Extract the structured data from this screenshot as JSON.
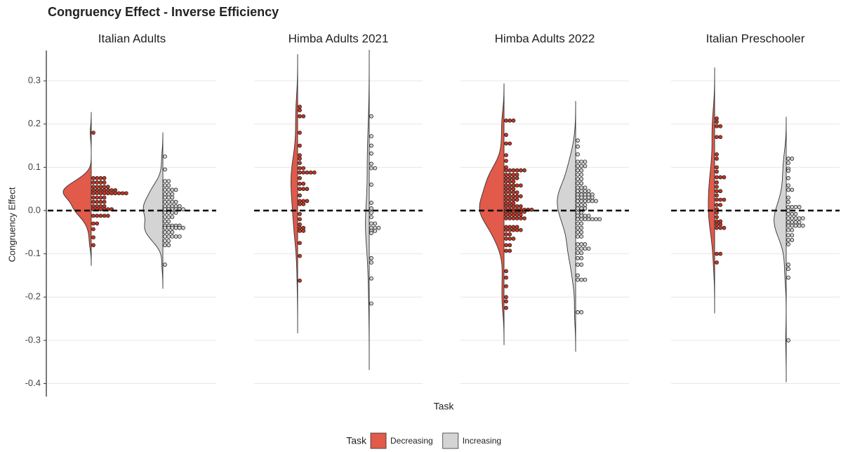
{
  "chart_data": {
    "type": "violin",
    "title": "Congruency Effect - Inverse Efficiency",
    "y_label": "Congruency Effect",
    "x_label": "Task",
    "legend_title": "Task",
    "ylim": [
      -0.43,
      0.37
    ],
    "yticks": [
      0.3,
      0.2,
      0.1,
      {
        "value": 0,
        "label": "0.0"
      },
      -0.1,
      -0.2,
      -0.3,
      -0.4
    ],
    "grid": true,
    "reference_line": 0,
    "series": [
      {
        "name": "Decreasing",
        "color": "#e15a4a",
        "dot_color": "#c93422"
      },
      {
        "name": "Increasing",
        "color": "#d4d4d4",
        "dot_color": "#d4d4d4"
      }
    ],
    "facets": [
      {
        "title": "Italian Adults",
        "series": [
          {
            "values": [
              0.18,
              0.075,
              0.075,
              0.075,
              0.075,
              0.065,
              0.065,
              0.065,
              0.065,
              0.055,
              0.055,
              0.055,
              0.055,
              0.055,
              0.047,
              0.047,
              0.047,
              0.047,
              0.047,
              0.047,
              0.047,
              0.04,
              0.04,
              0.04,
              0.04,
              0.04,
              0.04,
              0.04,
              0.04,
              0.04,
              0.04,
              0.03,
              0.03,
              0.03,
              0.03,
              0.02,
              0.02,
              0.02,
              0.02,
              0.01,
              0.01,
              0.01,
              0.01,
              0.003,
              0.003,
              0.003,
              0.003,
              0.003,
              0.003,
              -0.012,
              -0.012,
              -0.012,
              -0.012,
              -0.012,
              -0.03,
              -0.03,
              -0.043,
              -0.062,
              -0.08
            ]
          },
          {
            "values": [
              0.125,
              0.095,
              0.068,
              0.068,
              0.058,
              0.058,
              0.048,
              0.048,
              0.048,
              0.048,
              0.038,
              0.038,
              0.038,
              0.03,
              0.03,
              0.03,
              0.02,
              0.02,
              0.02,
              0.02,
              0.01,
              0.01,
              0.01,
              0.01,
              0.01,
              0.003,
              0.003,
              0.003,
              0.003,
              0.003,
              0.003,
              -0.005,
              -0.005,
              -0.005,
              -0.005,
              -0.015,
              -0.015,
              -0.015,
              -0.025,
              -0.025,
              -0.035,
              -0.035,
              -0.035,
              -0.035,
              -0.035,
              -0.04,
              -0.04,
              -0.04,
              -0.04,
              -0.04,
              -0.04,
              -0.05,
              -0.05,
              -0.05,
              -0.06,
              -0.06,
              -0.06,
              -0.06,
              -0.06,
              -0.07,
              -0.07,
              -0.08,
              -0.08,
              -0.125
            ]
          }
        ]
      },
      {
        "title": "Himba Adults 2021",
        "series": [
          {
            "values": [
              0.24,
              0.232,
              0.218,
              0.218,
              0.18,
              0.15,
              0.128,
              0.12,
              0.11,
              0.098,
              0.098,
              0.088,
              0.088,
              0.088,
              0.088,
              0.088,
              0.075,
              0.062,
              0.062,
              0.05,
              0.05,
              0.05,
              0.035,
              0.022,
              0.022,
              0.022,
              0.015,
              0.015,
              -0.008,
              -0.02,
              -0.032,
              -0.04,
              -0.04,
              -0.047,
              -0.047,
              -0.075,
              -0.105,
              -0.162
            ]
          },
          {
            "values": [
              0.218,
              0.172,
              0.15,
              0.132,
              0.108,
              0.098,
              0.098,
              0.06,
              0.018,
              0.005,
              -0.005,
              -0.015,
              -0.03,
              -0.03,
              -0.04,
              -0.04,
              -0.04,
              -0.047,
              -0.047,
              -0.052,
              -0.11,
              -0.12,
              -0.157,
              -0.215
            ]
          }
        ]
      },
      {
        "title": "Himba Adults 2022",
        "series": [
          {
            "values": [
              0.208,
              0.208,
              0.208,
              0.175,
              0.155,
              0.155,
              0.128,
              0.115,
              0.1,
              0.093,
              0.093,
              0.093,
              0.093,
              0.093,
              0.093,
              0.083,
              0.083,
              0.083,
              0.083,
              0.075,
              0.075,
              0.075,
              0.075,
              0.067,
              0.067,
              0.067,
              0.058,
              0.058,
              0.058,
              0.058,
              0.058,
              0.05,
              0.05,
              0.05,
              0.042,
              0.042,
              0.042,
              0.042,
              0.033,
              0.033,
              0.033,
              0.033,
              0.033,
              0.025,
              0.025,
              0.025,
              0.025,
              0.017,
              0.017,
              0.017,
              0.01,
              0.01,
              0.01,
              0.01,
              0.01,
              0.002,
              0.002,
              0.002,
              0.002,
              0.002,
              0.002,
              0.002,
              0.002,
              -0.003,
              -0.003,
              -0.003,
              -0.003,
              -0.003,
              -0.003,
              -0.01,
              -0.01,
              -0.01,
              -0.01,
              -0.01,
              -0.018,
              -0.018,
              -0.018,
              -0.018,
              -0.018,
              -0.018,
              -0.038,
              -0.038,
              -0.038,
              -0.038,
              -0.045,
              -0.045,
              -0.045,
              -0.045,
              -0.045,
              -0.055,
              -0.055,
              -0.065,
              -0.065,
              -0.065,
              -0.08,
              -0.08,
              -0.093,
              -0.093,
              -0.14,
              -0.155,
              -0.175,
              -0.2,
              -0.21,
              -0.225
            ]
          },
          {
            "values": [
              0.162,
              0.148,
              0.13,
              0.113,
              0.113,
              0.113,
              0.103,
              0.103,
              0.103,
              0.093,
              0.093,
              0.083,
              0.083,
              0.073,
              0.073,
              0.063,
              0.063,
              0.053,
              0.053,
              0.053,
              0.045,
              0.045,
              0.045,
              0.045,
              0.037,
              0.037,
              0.037,
              0.037,
              0.037,
              0.03,
              0.03,
              0.03,
              0.03,
              0.03,
              0.022,
              0.022,
              0.022,
              0.022,
              0.022,
              0.022,
              0.013,
              0.013,
              0.013,
              0.005,
              0.005,
              0.005,
              -0.005,
              -0.005,
              -0.012,
              -0.012,
              -0.012,
              -0.012,
              -0.02,
              -0.02,
              -0.02,
              -0.02,
              -0.02,
              -0.02,
              -0.02,
              -0.03,
              -0.03,
              -0.04,
              -0.04,
              -0.05,
              -0.05,
              -0.06,
              -0.06,
              -0.078,
              -0.078,
              -0.078,
              -0.088,
              -0.088,
              -0.088,
              -0.088,
              -0.098,
              -0.098,
              -0.11,
              -0.11,
              -0.125,
              -0.125,
              -0.15,
              -0.16,
              -0.16,
              -0.16,
              -0.235,
              -0.235
            ]
          }
        ]
      },
      {
        "title": "Italian Preschooler",
        "series": [
          {
            "values": [
              0.213,
              0.205,
              0.195,
              0.195,
              0.17,
              0.17,
              0.13,
              0.12,
              0.1,
              0.09,
              0.077,
              0.077,
              0.077,
              0.065,
              0.055,
              0.045,
              0.045,
              0.035,
              0.025,
              0.025,
              0.025,
              0.013,
              0.013,
              0.003,
              -0.005,
              -0.015,
              -0.025,
              -0.025,
              -0.032,
              -0.032,
              -0.04,
              -0.04,
              -0.04,
              -0.1,
              -0.1,
              -0.12
            ]
          },
          {
            "values": [
              0.12,
              0.12,
              0.11,
              0.097,
              0.092,
              0.075,
              0.058,
              0.048,
              0.048,
              0.03,
              0.02,
              0.008,
              0.008,
              0.008,
              0.008,
              0,
              -0.008,
              -0.008,
              -0.008,
              -0.018,
              -0.018,
              -0.018,
              -0.018,
              -0.018,
              -0.027,
              -0.027,
              -0.027,
              -0.027,
              -0.035,
              -0.035,
              -0.035,
              -0.035,
              -0.035,
              -0.045,
              -0.045,
              -0.057,
              -0.057,
              -0.068,
              -0.068,
              -0.078,
              -0.125,
              -0.135,
              -0.155,
              -0.3
            ]
          }
        ]
      }
    ]
  }
}
